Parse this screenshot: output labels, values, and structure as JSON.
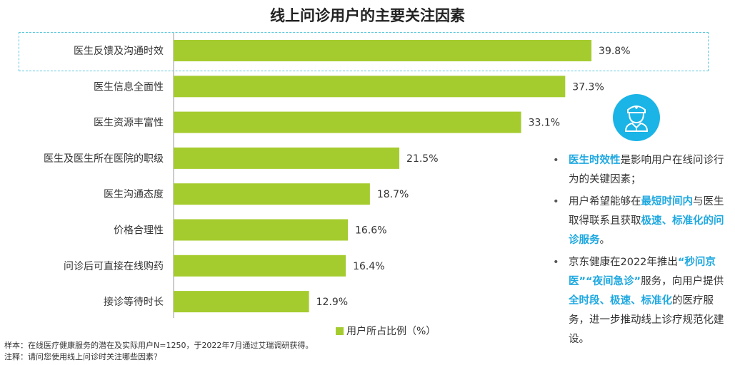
{
  "title": "线上问诊用户的主要关注因素",
  "legend": {
    "label": "用户所占比例（%）",
    "color": "#a5cc2f"
  },
  "chart_data": {
    "type": "bar",
    "orientation": "horizontal",
    "title": "线上问诊用户的主要关注因素",
    "categories": [
      "医生反馈及沟通时效",
      "医生信息全面性",
      "医生资源丰富性",
      "医生及医生所在医院的职级",
      "医生沟通态度",
      "价格合理性",
      "问诊后可直接在线购药",
      "接诊等待时长"
    ],
    "values": [
      39.8,
      37.3,
      33.1,
      21.5,
      18.7,
      16.6,
      16.4,
      12.9
    ],
    "value_labels": [
      "39.8%",
      "37.3%",
      "33.1%",
      "21.5%",
      "18.7%",
      "16.6%",
      "16.4%",
      "12.9%"
    ],
    "series": [
      {
        "name": "用户所占比例（%）",
        "values": [
          39.8,
          37.3,
          33.1,
          21.5,
          18.7,
          16.6,
          16.4,
          12.9
        ]
      }
    ],
    "xlim": [
      0,
      45
    ],
    "bar_color": "#a5cc2f",
    "grid": false,
    "legend_position": "bottom"
  },
  "bullets": [
    {
      "parts": [
        {
          "t": "医生时效性",
          "hl": true
        },
        {
          "t": "是影响用户在线问诊行为的关键因素；",
          "hl": false
        }
      ]
    },
    {
      "parts": [
        {
          "t": "用户希望能够在",
          "hl": false
        },
        {
          "t": "最短时间内",
          "hl": true
        },
        {
          "t": "与医生取得联系且获取",
          "hl": false
        },
        {
          "t": "极速、标准化的问诊服务",
          "hl": true
        },
        {
          "t": "。",
          "hl": false
        }
      ]
    },
    {
      "parts": [
        {
          "t": "京东健康在2022年推出",
          "hl": false
        },
        {
          "t": "“秒问京医”“夜间急诊”",
          "hl": true
        },
        {
          "t": "服务，向用户提供",
          "hl": false
        },
        {
          "t": "全时段、极速、标准化",
          "hl": true
        },
        {
          "t": "的医疗服务，进一步推动线上诊疗规范化建设。",
          "hl": false
        }
      ]
    }
  ],
  "highlight_color": "#1ea8e0",
  "icon": {
    "name": "doctor-icon",
    "color": "#1ab4e6"
  },
  "footnotes": {
    "sample": "样本：在线医疗健康服务的潜在及实际用户N=1250，于2022年7月通过艾瑞调研获得。",
    "note": "注释：请问您使用线上问诊时关注哪些因素？"
  }
}
